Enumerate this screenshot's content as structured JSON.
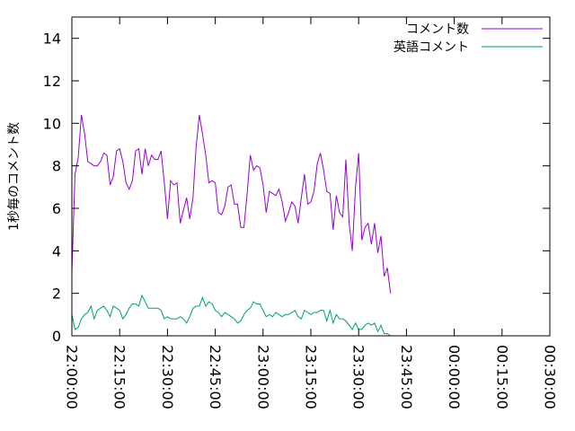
{
  "chart_data": {
    "type": "line",
    "title": "",
    "xlabel": "",
    "ylabel": "1秒毎のコメント数",
    "ylim": [
      0,
      15
    ],
    "yticks": [
      0,
      2,
      4,
      6,
      8,
      10,
      12,
      14
    ],
    "xticks": [
      "22:00:00",
      "22:15:00",
      "22:30:00",
      "22:45:00",
      "23:00:00",
      "23:15:00",
      "23:30:00",
      "23:45:00",
      "00:00:00",
      "00:15:00",
      "00:30:00"
    ],
    "xlim_minutes": [
      0,
      150
    ],
    "grid": false,
    "legend_position": "top-right",
    "series": [
      {
        "name": "コメント数",
        "color": "#9400d3",
        "points": [
          [
            0,
            3.0
          ],
          [
            1,
            7.6
          ],
          [
            2,
            8.4
          ],
          [
            3,
            10.4
          ],
          [
            4,
            9.5
          ],
          [
            5,
            8.2
          ],
          [
            6,
            8.1
          ],
          [
            7,
            8.0
          ],
          [
            8,
            8.0
          ],
          [
            9,
            8.2
          ],
          [
            10,
            8.6
          ],
          [
            11,
            8.5
          ],
          [
            12,
            7.1
          ],
          [
            13,
            7.5
          ],
          [
            14,
            8.7
          ],
          [
            15,
            8.8
          ],
          [
            16,
            8.2
          ],
          [
            17,
            7.2
          ],
          [
            18,
            6.9
          ],
          [
            19,
            7.3
          ],
          [
            20,
            8.7
          ],
          [
            21,
            8.8
          ],
          [
            22,
            7.6
          ],
          [
            23,
            8.8
          ],
          [
            24,
            8.0
          ],
          [
            25,
            8.5
          ],
          [
            26,
            8.3
          ],
          [
            27,
            8.3
          ],
          [
            28,
            8.7
          ],
          [
            29,
            7.2
          ],
          [
            30,
            5.5
          ],
          [
            31,
            7.3
          ],
          [
            32,
            7.1
          ],
          [
            33,
            7.2
          ],
          [
            34,
            5.3
          ],
          [
            35,
            5.9
          ],
          [
            36,
            6.5
          ],
          [
            37,
            5.5
          ],
          [
            38,
            6.5
          ],
          [
            39,
            8.9
          ],
          [
            40,
            10.4
          ],
          [
            41,
            9.5
          ],
          [
            42,
            8.5
          ],
          [
            43,
            7.2
          ],
          [
            44,
            7.3
          ],
          [
            45,
            7.2
          ],
          [
            46,
            5.8
          ],
          [
            47,
            5.7
          ],
          [
            48,
            6.1
          ],
          [
            49,
            7.0
          ],
          [
            50,
            7.1
          ],
          [
            51,
            6.2
          ],
          [
            52,
            6.2
          ],
          [
            53,
            5.1
          ],
          [
            54,
            5.1
          ],
          [
            55,
            6.7
          ],
          [
            56,
            8.5
          ],
          [
            57,
            7.8
          ],
          [
            58,
            8.0
          ],
          [
            59,
            7.9
          ],
          [
            60,
            7.1
          ],
          [
            61,
            5.8
          ],
          [
            62,
            6.8
          ],
          [
            63,
            6.7
          ],
          [
            64,
            6.6
          ],
          [
            65,
            6.9
          ],
          [
            66,
            6.3
          ],
          [
            67,
            5.4
          ],
          [
            68,
            5.8
          ],
          [
            69,
            6.3
          ],
          [
            70,
            6.1
          ],
          [
            71,
            5.3
          ],
          [
            72,
            6.5
          ],
          [
            73,
            7.6
          ],
          [
            74,
            6.2
          ],
          [
            75,
            6.3
          ],
          [
            76,
            6.8
          ],
          [
            77,
            8.1
          ],
          [
            78,
            8.6
          ],
          [
            79,
            7.8
          ],
          [
            80,
            6.8
          ],
          [
            81,
            6.7
          ],
          [
            82,
            5.0
          ],
          [
            83,
            6.6
          ],
          [
            84,
            5.8
          ],
          [
            85,
            5.6
          ],
          [
            86,
            8.3
          ],
          [
            87,
            5.3
          ],
          [
            88,
            4.0
          ],
          [
            89,
            7.0
          ],
          [
            90,
            8.6
          ],
          [
            91,
            4.5
          ],
          [
            92,
            5.1
          ],
          [
            93,
            5.3
          ],
          [
            94,
            4.3
          ],
          [
            95,
            5.3
          ],
          [
            96,
            3.9
          ],
          [
            97,
            4.7
          ],
          [
            98,
            2.8
          ],
          [
            99,
            3.2
          ],
          [
            100,
            2.0
          ]
        ]
      },
      {
        "name": "英語コメント",
        "color": "#009e73",
        "points": [
          [
            0,
            1.0
          ],
          [
            1,
            0.3
          ],
          [
            2,
            0.4
          ],
          [
            3,
            0.8
          ],
          [
            4,
            1.0
          ],
          [
            5,
            1.1
          ],
          [
            6,
            1.4
          ],
          [
            7,
            0.8
          ],
          [
            8,
            1.2
          ],
          [
            9,
            1.3
          ],
          [
            10,
            1.4
          ],
          [
            11,
            1.2
          ],
          [
            12,
            0.9
          ],
          [
            13,
            1.4
          ],
          [
            14,
            1.3
          ],
          [
            15,
            1.2
          ],
          [
            16,
            0.8
          ],
          [
            17,
            1.0
          ],
          [
            18,
            1.3
          ],
          [
            19,
            1.5
          ],
          [
            20,
            1.5
          ],
          [
            21,
            1.4
          ],
          [
            22,
            1.9
          ],
          [
            23,
            1.6
          ],
          [
            24,
            1.3
          ],
          [
            25,
            1.3
          ],
          [
            26,
            1.3
          ],
          [
            27,
            1.3
          ],
          [
            28,
            1.2
          ],
          [
            29,
            0.8
          ],
          [
            30,
            0.9
          ],
          [
            31,
            0.8
          ],
          [
            32,
            0.8
          ],
          [
            33,
            0.8
          ],
          [
            34,
            0.9
          ],
          [
            35,
            0.8
          ],
          [
            36,
            0.6
          ],
          [
            37,
            0.9
          ],
          [
            38,
            1.3
          ],
          [
            39,
            1.4
          ],
          [
            40,
            1.4
          ],
          [
            41,
            1.8
          ],
          [
            42,
            1.4
          ],
          [
            43,
            1.6
          ],
          [
            44,
            1.5
          ],
          [
            45,
            1.2
          ],
          [
            46,
            1.1
          ],
          [
            47,
            0.9
          ],
          [
            48,
            1.1
          ],
          [
            49,
            1.0
          ],
          [
            50,
            0.9
          ],
          [
            51,
            0.8
          ],
          [
            52,
            0.6
          ],
          [
            53,
            0.7
          ],
          [
            54,
            1.0
          ],
          [
            55,
            1.2
          ],
          [
            56,
            1.3
          ],
          [
            57,
            1.6
          ],
          [
            58,
            1.5
          ],
          [
            59,
            1.5
          ],
          [
            60,
            1.2
          ],
          [
            61,
            0.9
          ],
          [
            62,
            1.0
          ],
          [
            63,
            0.9
          ],
          [
            64,
            1.1
          ],
          [
            65,
            1.0
          ],
          [
            66,
            0.9
          ],
          [
            67,
            1.0
          ],
          [
            68,
            1.0
          ],
          [
            69,
            1.1
          ],
          [
            70,
            1.2
          ],
          [
            71,
            0.9
          ],
          [
            72,
            0.8
          ],
          [
            73,
            1.2
          ],
          [
            74,
            1.1
          ],
          [
            75,
            1.0
          ],
          [
            76,
            1.1
          ],
          [
            77,
            1.1
          ],
          [
            78,
            1.2
          ],
          [
            79,
            1.2
          ],
          [
            80,
            0.7
          ],
          [
            81,
            1.2
          ],
          [
            82,
            0.6
          ],
          [
            83,
            1.0
          ],
          [
            84,
            0.8
          ],
          [
            85,
            0.8
          ],
          [
            86,
            0.7
          ],
          [
            87,
            0.5
          ],
          [
            88,
            0.3
          ],
          [
            89,
            0.6
          ],
          [
            90,
            0.3
          ],
          [
            91,
            0.3
          ],
          [
            92,
            0.5
          ],
          [
            93,
            0.6
          ],
          [
            94,
            0.5
          ],
          [
            95,
            0.6
          ],
          [
            96,
            0.2
          ],
          [
            97,
            0.5
          ],
          [
            98,
            0.1
          ],
          [
            99,
            0.1
          ],
          [
            100,
            0.0
          ]
        ]
      }
    ]
  }
}
